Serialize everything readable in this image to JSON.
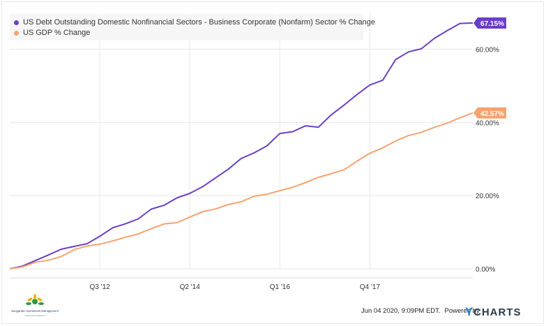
{
  "chart_data": {
    "type": "line",
    "x_tick_labels": [
      "Q3 '12",
      "Q2 '14",
      "Q1 '16",
      "Q4 '17"
    ],
    "y_tick_labels": [
      "0.00%",
      "20.00%",
      "40.00%",
      "60.00%"
    ],
    "ylim": [
      0,
      70
    ],
    "grid": true,
    "legend_position": "top-left",
    "series": [
      {
        "name": "US Debt Outstanding Domestic Nonfinancial Sectors - Business Corporate (Nonfarm) Sector % Change",
        "color": "#6b3fc5",
        "end_label": "67.15%",
        "values": [
          0.0,
          0.75,
          2.25,
          3.75,
          5.35,
          6.1,
          6.82,
          8.87,
          11.19,
          12.28,
          13.63,
          16.3,
          17.34,
          19.37,
          20.59,
          22.44,
          24.84,
          27.24,
          30.16,
          31.66,
          33.58,
          36.96,
          37.47,
          39.07,
          38.68,
          42.07,
          44.74,
          47.6,
          50.23,
          51.51,
          57.15,
          59.27,
          60.1,
          62.93,
          65.04,
          67.03,
          67.15
        ]
      },
      {
        "name": "US GDP % Change",
        "color": "#f7a26f",
        "end_label": "42.57%",
        "values": [
          0.0,
          0.53,
          1.78,
          2.35,
          3.36,
          5.21,
          6.22,
          6.71,
          7.59,
          8.63,
          9.51,
          10.95,
          12.24,
          12.59,
          14.14,
          15.61,
          16.34,
          17.55,
          18.32,
          19.83,
          20.37,
          21.35,
          22.28,
          23.53,
          24.98,
          25.97,
          27.07,
          29.39,
          31.58,
          33.04,
          34.9,
          36.4,
          37.28,
          38.64,
          39.76,
          41.25,
          42.57
        ]
      }
    ]
  },
  "footer": {
    "timestamp": "Jun 04 2020, 9:09PM EDT.",
    "powered_by": "Powered by",
    "brand": "YCHARTS"
  },
  "logo": {
    "name": "Sungarden Investment Management",
    "tagline": "Harvesting dividends"
  }
}
